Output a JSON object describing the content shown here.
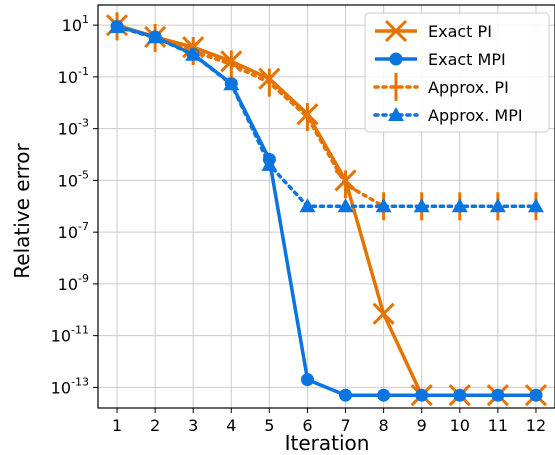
{
  "chart_data": {
    "type": "line",
    "xlabel": "Iteration",
    "ylabel": "Relative error",
    "x": [
      1,
      2,
      3,
      4,
      5,
      6,
      7,
      8,
      9,
      10,
      11,
      12
    ],
    "xlim": [
      0.5,
      12.5
    ],
    "y_scale": "log",
    "ylim": [
      1.6e-14,
      60
    ],
    "y_ticks": [
      10.0,
      0.1,
      0.001,
      1e-05,
      1e-07,
      1e-09,
      1e-11,
      1e-13
    ],
    "y_tick_labels": [
      {
        "base": "10",
        "exp": "1"
      },
      {
        "base": "10",
        "exp": "-1"
      },
      {
        "base": "10",
        "exp": "-3"
      },
      {
        "base": "10",
        "exp": "-5"
      },
      {
        "base": "10",
        "exp": "-7"
      },
      {
        "base": "10",
        "exp": "-9"
      },
      {
        "base": "10",
        "exp": "-11"
      },
      {
        "base": "10",
        "exp": "-13"
      }
    ],
    "x_tick_labels": [
      "1",
      "2",
      "3",
      "4",
      "5",
      "6",
      "7",
      "8",
      "9",
      "10",
      "11",
      "12"
    ],
    "grid": true,
    "legend_position": "top-right",
    "series": [
      {
        "name": "Exact PI",
        "color": "#e67300",
        "line_style": "solid",
        "marker": "x",
        "values": [
          10,
          3.5,
          1.4,
          0.4,
          0.085,
          0.0036,
          1e-05,
          7e-11,
          5e-14,
          5e-14,
          5e-14,
          5e-14
        ]
      },
      {
        "name": "Exact MPI",
        "color": "#0a74e0",
        "line_style": "solid",
        "marker": "circle",
        "values": [
          9,
          3.5,
          0.75,
          0.055,
          6.5e-05,
          2e-13,
          5e-14,
          5e-14,
          5e-14,
          5e-14,
          5e-14,
          5e-14
        ]
      },
      {
        "name": "Approx. PI",
        "color": "#e67300",
        "line_style": "dotted",
        "marker": "vline",
        "values": [
          9,
          3.2,
          1.0,
          0.3,
          0.06,
          0.0028,
          7e-06,
          1e-06,
          1e-06,
          1e-06,
          1e-06,
          1e-06
        ]
      },
      {
        "name": "Approx. MPI",
        "color": "#0a74e0",
        "line_style": "dotted",
        "marker": "triangle",
        "values": [
          8.5,
          3.4,
          0.72,
          0.052,
          4e-05,
          1e-06,
          1e-06,
          1e-06,
          1e-06,
          1e-06,
          1e-06,
          1e-06
        ]
      }
    ]
  }
}
